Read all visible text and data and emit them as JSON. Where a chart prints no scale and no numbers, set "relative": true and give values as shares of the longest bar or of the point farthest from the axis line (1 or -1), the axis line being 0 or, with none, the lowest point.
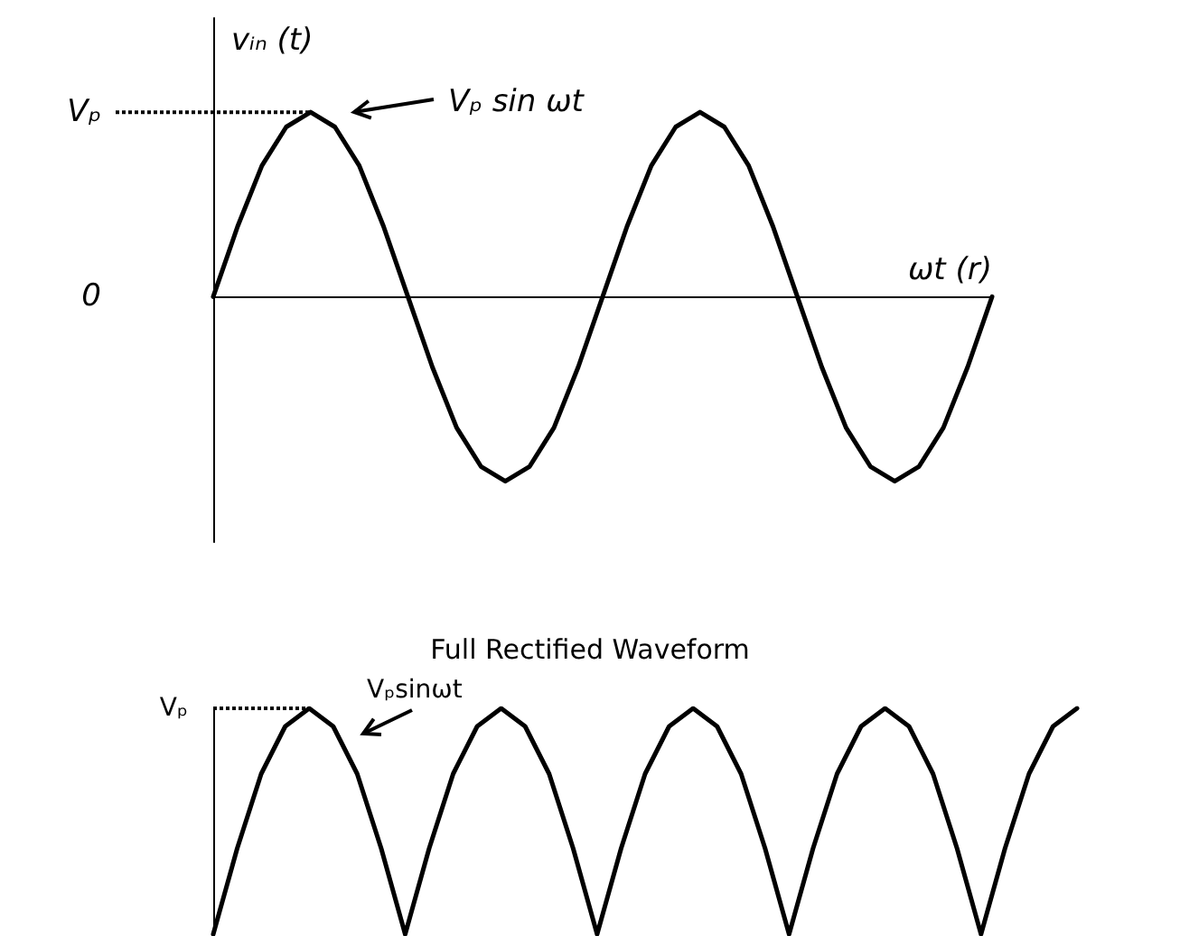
{
  "chart_data": [
    {
      "type": "line",
      "ylabel": "vᵢₙ (t)",
      "xlabel": "ωt (r)",
      "annotations": [
        "Vₚ sin ωt",
        "Vₚ",
        "0"
      ],
      "relative": true,
      "categories": [
        null,
        null,
        null,
        null,
        null,
        null,
        null,
        null,
        null,
        null,
        null,
        null,
        null,
        null,
        null,
        null,
        null,
        null,
        null,
        null,
        null,
        null,
        null,
        null,
        null,
        null,
        null,
        null,
        null,
        null,
        null,
        null,
        null
      ],
      "series": [
        {
          "color": "#000000",
          "values": [
            0,
            0.38,
            0.71,
            0.92,
            1,
            0.92,
            0.71,
            0.38,
            0,
            -0.38,
            -0.71,
            -0.92,
            -1,
            -0.92,
            -0.71,
            -0.38,
            0,
            0.38,
            0.71,
            0.92,
            1,
            0.92,
            0.71,
            0.38,
            0,
            -0.38,
            -0.71,
            -0.92,
            -1,
            -0.92,
            -0.71,
            -0.38,
            0
          ]
        }
      ],
      "ref_lines": [
        {
          "axis": "y",
          "value": 1,
          "color": "#000000",
          "line_style": "dotted"
        }
      ],
      "tick_labels": false,
      "marker": "none",
      "line_style": "solid"
    },
    {
      "type": "line",
      "title": "Full Rectified Waveform",
      "annotations": [
        "Vₚsinωt",
        "Vₚ"
      ],
      "relative": true,
      "categories": [
        null,
        null,
        null,
        null,
        null,
        null,
        null,
        null,
        null,
        null,
        null,
        null,
        null,
        null,
        null,
        null,
        null,
        null,
        null,
        null,
        null,
        null,
        null,
        null,
        null,
        null,
        null,
        null,
        null,
        null,
        null,
        null,
        null,
        null,
        null,
        null,
        null
      ],
      "series": [
        {
          "color": "#000000",
          "values": [
            0,
            0.38,
            0.71,
            0.92,
            1,
            0.92,
            0.71,
            0.38,
            0,
            0.38,
            0.71,
            0.92,
            1,
            0.92,
            0.71,
            0.38,
            0,
            0.38,
            0.71,
            0.92,
            1,
            0.92,
            0.71,
            0.38,
            0,
            0.38,
            0.71,
            0.92,
            1,
            0.92,
            0.71,
            0.38,
            0,
            0.38,
            0.71,
            0.92,
            1
          ]
        }
      ],
      "ref_lines": [
        {
          "axis": "y",
          "value": 1,
          "color": "#000000",
          "line_style": "dotted"
        }
      ],
      "tick_labels": false,
      "marker": "none",
      "line_style": "solid"
    }
  ]
}
